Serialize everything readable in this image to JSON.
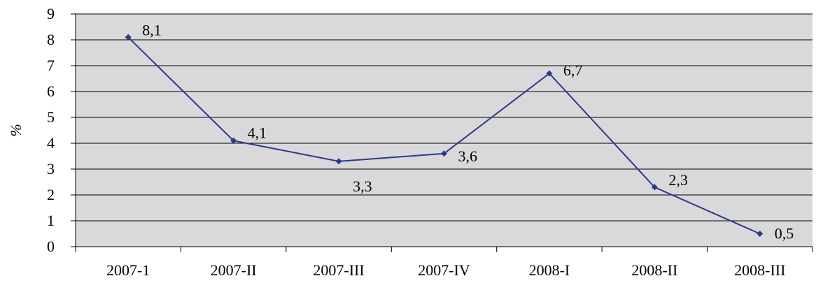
{
  "chart_data": {
    "type": "line",
    "categories": [
      "2007-1",
      "2007-II",
      "2007-III",
      "2007-IV",
      "2008-I",
      "2008-II",
      "2008-III"
    ],
    "series": [
      {
        "values": [
          8.1,
          4.1,
          3.3,
          3.6,
          6.7,
          2.3,
          0.5
        ],
        "value_labels": [
          "8,1",
          "4,1",
          "3,3",
          "3,6",
          "6,7",
          "2,3",
          "0,5"
        ],
        "color": "#2b3990"
      }
    ],
    "title": "",
    "xlabel": "",
    "ylabel": "%",
    "ylim": [
      0,
      9
    ],
    "yticks": [
      "0",
      "1",
      "2",
      "3",
      "4",
      "5",
      "6",
      "7",
      "8",
      "9"
    ],
    "grid": true,
    "legend": "none",
    "plot_background": "#d9d9d9",
    "gridline_color": "#000000"
  }
}
